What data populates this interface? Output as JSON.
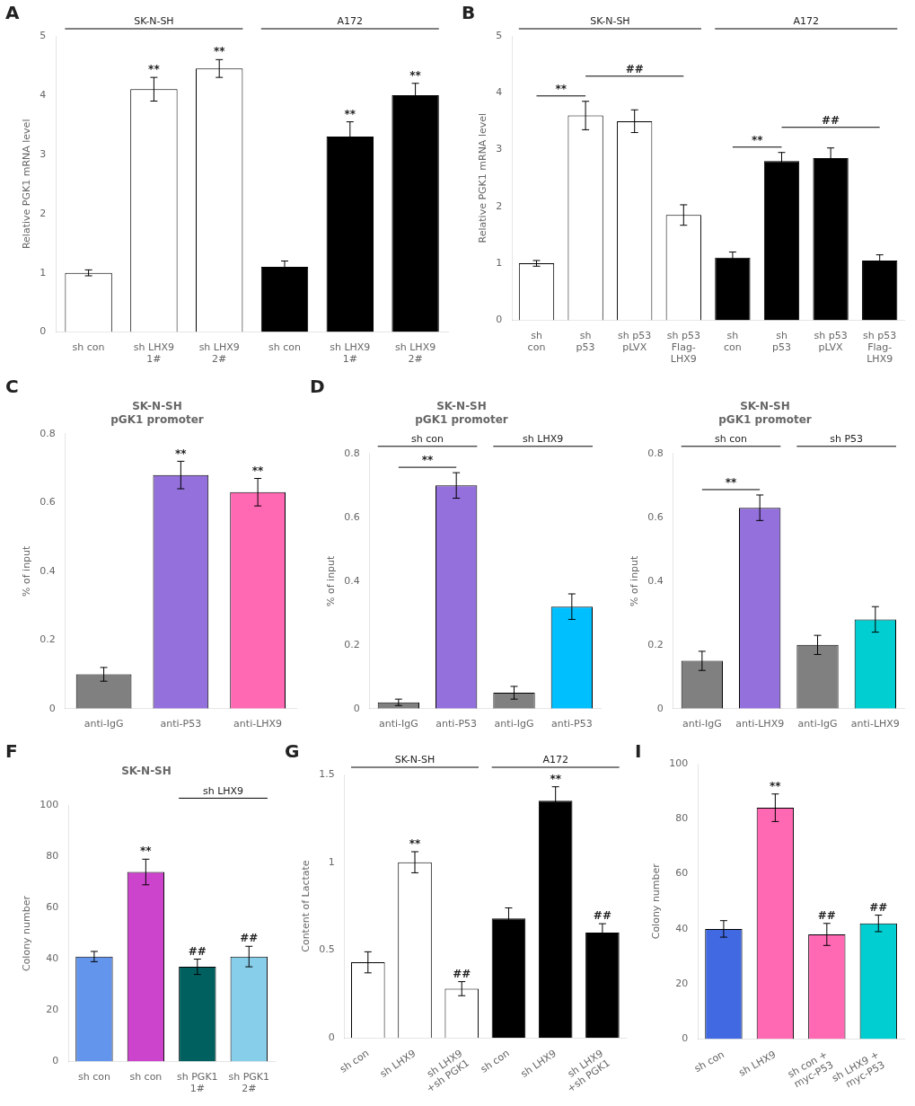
{
  "chart_data": [
    {
      "type": "bar",
      "ylabel": "Relative PGK1 mRNA level",
      "categories": [
        "sh con",
        "sh LHX9\n1#",
        "sh LHX9\n2#",
        "sh con",
        "sh LHX9\n1#",
        "sh LHX9\n2#"
      ],
      "values": [
        1.0,
        4.1,
        4.45,
        1.1,
        3.3,
        4.0
      ],
      "errors": [
        0.05,
        0.2,
        0.15,
        0.1,
        0.25,
        0.2
      ],
      "colors": [
        "white",
        "white",
        "white",
        "black",
        "black",
        "black"
      ],
      "groups": [
        "SK-N-SH",
        "SK-N-SH",
        "SK-N-SH",
        "A172",
        "A172",
        "A172"
      ],
      "annotations": [
        {
          "text": "A"
        },
        {
          "text": "**",
          "bars": [
            1
          ]
        },
        {
          "text": "**",
          "bars": [
            2
          ]
        },
        {
          "text": "**",
          "bars": [
            4
          ]
        },
        {
          "text": "**",
          "bars": [
            5
          ]
        }
      ],
      "ylim": [
        0,
        5
      ],
      "yticks": [
        0,
        1,
        2,
        3,
        4,
        5
      ],
      "grid": false
    },
    {
      "type": "bar",
      "ylabel": "Relative PGK1 mRNA level",
      "categories": [
        "sh\ncon",
        "sh\np53",
        "sh p53\npLVX",
        "sh p53\nFlag-\nLHX9",
        "sh\ncon",
        "sh\np53",
        "sh p53\npLVX",
        "sh p53\nFlag-\nLHX9"
      ],
      "values": [
        1.0,
        3.6,
        3.5,
        1.85,
        1.1,
        2.8,
        2.85,
        1.05
      ],
      "errors": [
        0.05,
        0.25,
        0.2,
        0.18,
        0.1,
        0.15,
        0.18,
        0.1
      ],
      "colors": [
        "white",
        "white",
        "white",
        "white",
        "black",
        "black",
        "black",
        "black"
      ],
      "groups": [
        "SK-N-SH",
        "SK-N-SH",
        "SK-N-SH",
        "SK-N-SH",
        "A172",
        "A172",
        "A172",
        "A172"
      ],
      "annotations": [
        {
          "text": "B"
        },
        {
          "text": "**",
          "bars": [
            0,
            1
          ]
        },
        {
          "text": "##",
          "bars": [
            1,
            3
          ]
        },
        {
          "text": "**",
          "bars": [
            4,
            5
          ]
        },
        {
          "text": "##",
          "bars": [
            5,
            7
          ]
        }
      ],
      "ylim": [
        0,
        5
      ],
      "yticks": [
        0,
        1,
        2,
        3,
        4,
        5
      ],
      "grid": false
    },
    {
      "type": "bar",
      "title": "SK-N-SH\npGK1 promoter",
      "ylabel": "% of input",
      "categories": [
        "anti-IgG",
        "anti-P53",
        "anti-LHX9"
      ],
      "values": [
        0.1,
        0.68,
        0.63
      ],
      "errors": [
        0.02,
        0.04,
        0.04
      ],
      "colors": [
        "#808080",
        "#9370DB",
        "#FF69B4"
      ],
      "annotations": [
        {
          "text": "C"
        },
        {
          "text": "**",
          "bars": [
            1
          ]
        },
        {
          "text": "**",
          "bars": [
            2
          ]
        }
      ],
      "ylim": [
        0,
        0.8
      ],
      "yticks": [
        0,
        0.2,
        0.4,
        0.6,
        0.8
      ],
      "grid": false
    },
    {
      "type": "bar",
      "title": "SK-N-SH\npGK1 promoter",
      "ylabel": "% of input",
      "categories": [
        "anti-IgG",
        "anti-P53",
        "anti-IgG",
        "anti-P53"
      ],
      "values": [
        0.02,
        0.7,
        0.05,
        0.32
      ],
      "errors": [
        0.01,
        0.04,
        0.02,
        0.04
      ],
      "colors": [
        "#808080",
        "#9370DB",
        "#808080",
        "#00BFFF"
      ],
      "groups": [
        "sh con",
        "sh con",
        "sh LHX9",
        "sh LHX9"
      ],
      "annotations": [
        {
          "text": "D"
        },
        {
          "text": "**",
          "bars": [
            0,
            1
          ]
        }
      ],
      "ylim": [
        0,
        0.8
      ],
      "yticks": [
        0,
        0.2,
        0.4,
        0.6,
        0.8
      ],
      "grid": false
    },
    {
      "type": "bar",
      "title": "SK-N-SH\npGK1 promoter",
      "ylabel": "% of input",
      "categories": [
        "anti-IgG",
        "anti-LHX9",
        "anti-IgG",
        "anti-LHX9"
      ],
      "values": [
        0.15,
        0.63,
        0.2,
        0.28
      ],
      "errors": [
        0.03,
        0.04,
        0.03,
        0.04
      ],
      "colors": [
        "#808080",
        "#9370DB",
        "#808080",
        "#00CED1"
      ],
      "groups": [
        "sh con",
        "sh con",
        "sh P53",
        "sh P53"
      ],
      "annotations": [
        {
          "text": "**",
          "bars": [
            0,
            1
          ]
        }
      ],
      "ylim": [
        0,
        0.8
      ],
      "yticks": [
        0,
        0.2,
        0.4,
        0.6,
        0.8
      ],
      "grid": false
    },
    {
      "type": "bar",
      "title": "SK-N-SH",
      "ylabel": "Colony number",
      "categories": [
        "sh con",
        "sh con",
        "sh PGK1\n1#",
        "sh PGK1\n2#"
      ],
      "values": [
        41,
        74,
        37,
        41
      ],
      "errors": [
        2,
        5,
        3,
        4
      ],
      "colors": [
        "#6495ED",
        "#CC44CC",
        "#006060",
        "#87CEEB"
      ],
      "groups": [
        null,
        null,
        "sh LHX9",
        "sh LHX9"
      ],
      "annotations": [
        {
          "text": "F"
        },
        {
          "text": "**",
          "bars": [
            1
          ]
        },
        {
          "text": "##",
          "bars": [
            2
          ]
        },
        {
          "text": "##",
          "bars": [
            3
          ]
        }
      ],
      "ylim": [
        0,
        100
      ],
      "yticks": [
        0,
        20,
        40,
        60,
        80,
        100
      ],
      "grid": false
    },
    {
      "type": "bar",
      "ylabel": "Content of Lactate",
      "categories": [
        "sh con",
        "sh LHX9",
        "sh LHX9\n+sh PGK1",
        "sh con",
        "sh LHX9",
        "sh LHX9\n+sh PGK1"
      ],
      "values": [
        0.43,
        1.0,
        0.28,
        0.68,
        1.35,
        0.6
      ],
      "errors": [
        0.06,
        0.06,
        0.04,
        0.06,
        0.08,
        0.05
      ],
      "colors": [
        "white",
        "white",
        "white",
        "black",
        "black",
        "black"
      ],
      "groups": [
        "SK-N-SH",
        "SK-N-SH",
        "SK-N-SH",
        "A172",
        "A172",
        "A172"
      ],
      "annotations": [
        {
          "text": "G"
        },
        {
          "text": "**",
          "bars": [
            1
          ]
        },
        {
          "text": "##",
          "bars": [
            2
          ]
        },
        {
          "text": "**",
          "bars": [
            4
          ]
        },
        {
          "text": "##",
          "bars": [
            5
          ]
        }
      ],
      "ylim": [
        0,
        1.5
      ],
      "yticks": [
        0,
        0.5,
        1,
        1.5
      ],
      "grid": false
    },
    {
      "type": "bar",
      "ylabel": "Colony number",
      "categories": [
        "sh con",
        "sh LHX9",
        "sh con +\nmyc-P53",
        "sh LHX9 +\nmyc-P53"
      ],
      "values": [
        40,
        84,
        38,
        42
      ],
      "errors": [
        3,
        5,
        4,
        3
      ],
      "colors": [
        "#4169E1",
        "#FF69B4",
        "#FF69B4",
        "#00CED1"
      ],
      "annotations": [
        {
          "text": "I"
        },
        {
          "text": "**",
          "bars": [
            1
          ]
        },
        {
          "text": "##",
          "bars": [
            2
          ]
        },
        {
          "text": "##",
          "bars": [
            3
          ]
        }
      ],
      "ylim": [
        0,
        100
      ],
      "yticks": [
        0,
        20,
        40,
        60,
        80,
        100
      ],
      "grid": false
    }
  ]
}
